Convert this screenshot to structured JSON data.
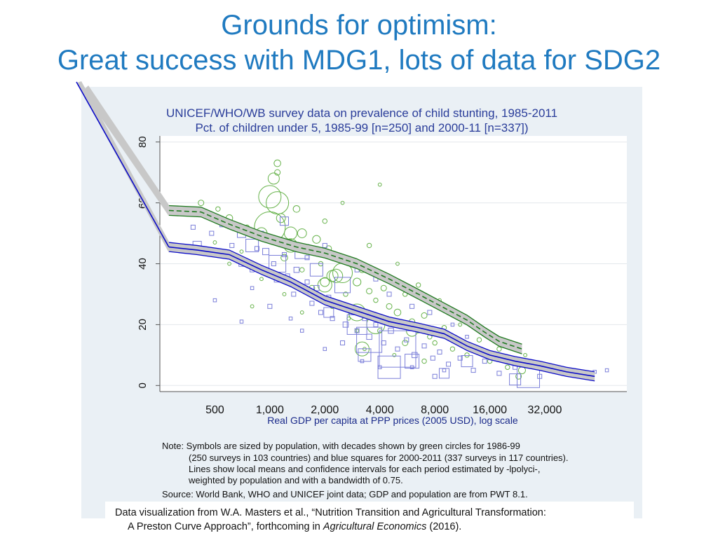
{
  "slide": {
    "title_line1": "Grounds for optimism:",
    "title_line2": "Great success with MDG1, lots of data for SDG2"
  },
  "chart_data": {
    "type": "scatter",
    "title": "UNICEF/WHO/WB survey data on prevalence of child stunting, 1985-2011",
    "subtitle": "Pct. of children under 5, 1985-99 [n=250] and 2000-11 [n=337])",
    "xlabel": "Real GDP per capita at PPP prices (2005 USD), log scale",
    "ylabel": "",
    "x_scale": "log",
    "xlim": [
      250,
      90000
    ],
    "ylim": [
      -2,
      82
    ],
    "x_ticks": [
      500,
      1000,
      2000,
      4000,
      8000,
      16000,
      32000
    ],
    "x_tick_labels": [
      "500",
      "1,000",
      "2,000",
      "4,000",
      "8,000",
      "16,000",
      "32,000"
    ],
    "y_ticks": [
      0,
      20,
      40,
      60,
      80
    ],
    "y_tick_labels": [
      "0",
      "20",
      "40",
      "60",
      "80"
    ],
    "grid": true,
    "series": [
      {
        "period": "1986-99",
        "marker": "circle",
        "color": "#66b24a",
        "fit_color": "#1f7a1f",
        "fit": [
          [
            280,
            57.5
          ],
          [
            420,
            57
          ],
          [
            600,
            53
          ],
          [
            900,
            49
          ],
          [
            1400,
            45.5
          ],
          [
            2000,
            43.5
          ],
          [
            3000,
            40
          ],
          [
            4500,
            35
          ],
          [
            6500,
            30
          ],
          [
            9000,
            25.5
          ],
          [
            12000,
            21.5
          ],
          [
            15000,
            17.5
          ],
          [
            18000,
            14.5
          ],
          [
            24000,
            12
          ]
        ],
        "fit_band": 1.6,
        "points": [
          [
            420,
            60,
            2.5
          ],
          [
            520,
            58,
            2
          ],
          [
            600,
            55,
            3
          ],
          [
            750,
            52,
            2
          ],
          [
            900,
            50,
            5
          ],
          [
            1000,
            62,
            10
          ],
          [
            1050,
            68,
            5
          ],
          [
            1100,
            73,
            3
          ],
          [
            1100,
            70,
            2.5
          ],
          [
            1150,
            55,
            4
          ],
          [
            1300,
            46,
            6
          ],
          [
            1400,
            58,
            3
          ],
          [
            1500,
            50,
            4
          ],
          [
            1600,
            44,
            2.5
          ],
          [
            1800,
            48,
            3.5
          ],
          [
            1900,
            40,
            2
          ],
          [
            2100,
            45,
            2.5
          ],
          [
            2300,
            36,
            6
          ],
          [
            2500,
            42,
            2
          ],
          [
            2800,
            40,
            3
          ],
          [
            3000,
            34,
            3.5
          ],
          [
            3200,
            38,
            2.5
          ],
          [
            3500,
            31,
            2.5
          ],
          [
            3800,
            28,
            2
          ],
          [
            4200,
            32,
            2.5
          ],
          [
            4500,
            26,
            2.5
          ],
          [
            5000,
            24,
            3
          ],
          [
            5500,
            30,
            2
          ],
          [
            6000,
            21,
            2.5
          ],
          [
            6500,
            18,
            2
          ],
          [
            7000,
            23,
            2.5
          ],
          [
            7500,
            16,
            2
          ],
          [
            8000,
            14,
            2
          ],
          [
            9000,
            19,
            2
          ],
          [
            10000,
            12,
            2
          ],
          [
            12000,
            10,
            2
          ],
          [
            14000,
            15,
            2
          ],
          [
            16000,
            8,
            2
          ],
          [
            18000,
            12,
            2
          ],
          [
            20000,
            6,
            2
          ],
          [
            25000,
            10,
            1.5
          ],
          [
            900,
            35,
            1.5
          ],
          [
            800,
            26,
            1.5
          ],
          [
            1200,
            30,
            1.5
          ],
          [
            1500,
            24,
            1.5
          ],
          [
            4000,
            66,
            1.5
          ],
          [
            2500,
            60,
            1.5
          ],
          [
            3000,
            18,
            1.5
          ],
          [
            2000,
            54,
            2
          ],
          [
            1200,
            42,
            3
          ],
          [
            1500,
            38,
            2
          ],
          [
            700,
            44,
            1.5
          ],
          [
            600,
            40,
            1.5
          ],
          [
            3500,
            46,
            2
          ],
          [
            5000,
            40,
            1.5
          ],
          [
            6500,
            33,
            2
          ],
          [
            8500,
            28,
            1.5
          ],
          [
            2700,
            22,
            1.5
          ],
          [
            2200,
            26,
            2
          ],
          [
            1700,
            32,
            2.5
          ],
          [
            3300,
            12,
            1.5
          ],
          [
            4800,
            10,
            1.5
          ],
          [
            23000,
            3,
            2.5
          ],
          [
            500,
            47,
            1.5
          ],
          [
            5500,
            14,
            2.5
          ],
          [
            7000,
            8,
            2
          ],
          [
            11000,
            20,
            1.5
          ],
          [
            2000,
            34,
            4
          ],
          [
            2600,
            30,
            2
          ],
          [
            4000,
            18,
            2
          ]
        ],
        "big_circles": [
          [
            1000,
            52,
            22
          ],
          [
            1100,
            60,
            16
          ],
          [
            2500,
            37,
            14
          ],
          [
            2000,
            33,
            10
          ],
          [
            3000,
            24,
            12
          ],
          [
            3800,
            20,
            13
          ],
          [
            3200,
            12,
            10
          ],
          [
            6000,
            18,
            8
          ],
          [
            2200,
            36,
            8
          ],
          [
            1300,
            50,
            9
          ],
          [
            24000,
            5,
            5
          ]
        ]
      },
      {
        "period": "2000-11",
        "marker": "square",
        "color": "#7b7fd9",
        "fit_color": "#0a0ac8",
        "fit": [
          [
            280,
            45.5
          ],
          [
            400,
            44.5
          ],
          [
            600,
            43
          ],
          [
            900,
            38
          ],
          [
            1300,
            34
          ],
          [
            2000,
            28
          ],
          [
            3000,
            24.5
          ],
          [
            4500,
            21
          ],
          [
            6500,
            19
          ],
          [
            9000,
            17
          ],
          [
            12000,
            13
          ],
          [
            16000,
            10
          ],
          [
            22000,
            8
          ],
          [
            30000,
            6.5
          ],
          [
            42000,
            4.5
          ],
          [
            60000,
            3
          ]
        ],
        "fit_band": 1.5,
        "points": [
          [
            300,
            46,
            2
          ],
          [
            380,
            52,
            2
          ],
          [
            480,
            50,
            2
          ],
          [
            550,
            53,
            2.5
          ],
          [
            620,
            46,
            2
          ],
          [
            700,
            40,
            2.5
          ],
          [
            800,
            38,
            2
          ],
          [
            850,
            45,
            2
          ],
          [
            950,
            44,
            3
          ],
          [
            1050,
            40,
            2
          ],
          [
            1100,
            35,
            3
          ],
          [
            1200,
            43,
            2
          ],
          [
            1250,
            36,
            2
          ],
          [
            1350,
            30,
            2
          ],
          [
            1400,
            38,
            2.5
          ],
          [
            1600,
            34,
            2
          ],
          [
            1700,
            27,
            2
          ],
          [
            1800,
            32,
            2.5
          ],
          [
            1900,
            24,
            2
          ],
          [
            2100,
            29,
            2
          ],
          [
            2200,
            22,
            2
          ],
          [
            2400,
            26,
            2
          ],
          [
            2600,
            20,
            2.5
          ],
          [
            2800,
            24,
            2
          ],
          [
            3000,
            18,
            2
          ],
          [
            3300,
            22,
            2
          ],
          [
            3500,
            16,
            2.5
          ],
          [
            3800,
            20,
            2
          ],
          [
            4200,
            14,
            2
          ],
          [
            4600,
            18,
            2.5
          ],
          [
            5000,
            12,
            2
          ],
          [
            5600,
            15,
            2
          ],
          [
            6200,
            10,
            2.5
          ],
          [
            7000,
            13,
            2
          ],
          [
            7800,
            9,
            2
          ],
          [
            8500,
            11,
            2
          ],
          [
            9500,
            7,
            2
          ],
          [
            11000,
            9,
            2
          ],
          [
            13000,
            5,
            2
          ],
          [
            15000,
            8,
            2
          ],
          [
            18000,
            4,
            2
          ],
          [
            22000,
            6,
            2
          ],
          [
            30000,
            3,
            2
          ],
          [
            40000,
            4,
            1.5
          ],
          [
            50000,
            4,
            1.5
          ],
          [
            60000,
            4.5,
            1.5
          ],
          [
            70000,
            5,
            1.5
          ],
          [
            500,
            28,
            1.5
          ],
          [
            700,
            21,
            1.5
          ],
          [
            800,
            32,
            1.5
          ],
          [
            1300,
            22,
            1.5
          ],
          [
            2000,
            12,
            1.5
          ],
          [
            1000,
            26,
            2
          ],
          [
            1500,
            18,
            1.5
          ],
          [
            2500,
            14,
            2
          ],
          [
            3200,
            8,
            1.5
          ],
          [
            4000,
            6,
            1.5
          ],
          [
            2000,
            46,
            2
          ],
          [
            2400,
            42,
            2
          ],
          [
            900,
            50,
            2
          ],
          [
            1600,
            42,
            2
          ],
          [
            3000,
            38,
            2
          ],
          [
            4500,
            30,
            2
          ],
          [
            6000,
            26,
            2
          ],
          [
            7500,
            24,
            2
          ],
          [
            10000,
            20,
            1.5
          ],
          [
            12000,
            16,
            1.5
          ],
          [
            5000,
            33,
            1.5
          ],
          [
            6500,
            30,
            1.5
          ],
          [
            3800,
            35,
            2
          ],
          [
            8000,
            3,
            2
          ],
          [
            9000,
            5,
            1.5
          ],
          [
            6000,
            6,
            1.5
          ]
        ],
        "big_squares": [
          [
            5000,
            12,
            26
          ],
          [
            3500,
            15,
            18
          ],
          [
            4500,
            6,
            16
          ],
          [
            3000,
            20,
            14
          ],
          [
            2500,
            33,
            11
          ],
          [
            1100,
            40,
            12
          ],
          [
            1500,
            44,
            10
          ],
          [
            800,
            46,
            9
          ],
          [
            6000,
            8,
            10
          ],
          [
            26000,
            3,
            16
          ],
          [
            22000,
            2,
            8
          ],
          [
            9000,
            4,
            7
          ],
          [
            12000,
            8,
            8
          ],
          [
            1200,
            54,
            6
          ],
          [
            700,
            50,
            6
          ],
          [
            400,
            46,
            6
          ],
          [
            2100,
            24,
            7
          ],
          [
            1800,
            38,
            9
          ],
          [
            3300,
            10,
            9
          ]
        ]
      }
    ]
  },
  "notes": {
    "line1": "Note: Symbols are sized by population, with decades shown by green circles for 1986-99",
    "line2": "(250 surveys in 103 countries) and blue squares for 2000-2011 (337 surveys in 117 countries).",
    "line3": "Lines show local means and confidence intervals for each period estimated by -lpolyci-,",
    "line4": "weighted by population and with a bandwidth of 0.75.",
    "source": "Source: World Bank, WHO and UNICEF joint data; GDP and population are from PWT 8.1."
  },
  "credit": {
    "line1": "Data visualization from W.A. Masters et al., “Nutrition Transition and Agricultural Transformation:",
    "line2_start": "A Preston Curve Approach”, forthcoming in ",
    "line2_italic": "Agricultural Economics",
    "line2_end": " (2016)."
  }
}
